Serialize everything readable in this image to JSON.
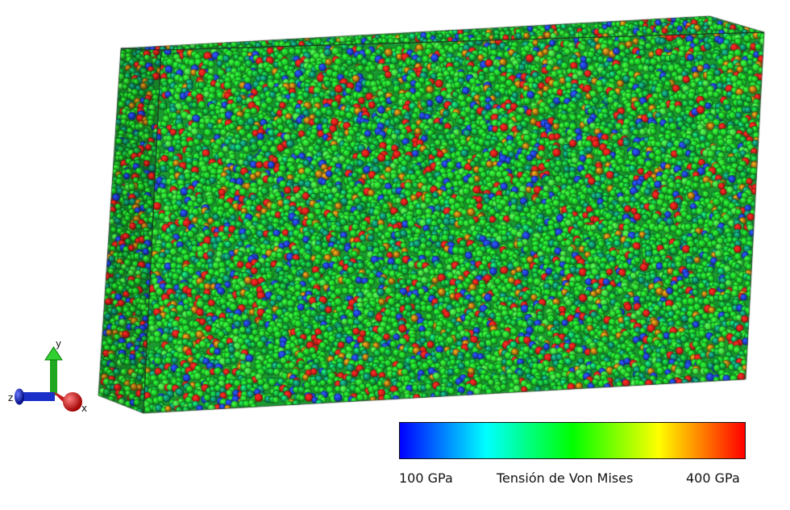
{
  "viewport": {
    "view": "atomistic stress render",
    "color_by": "von-mises-stress"
  },
  "triad": {
    "icon": "axis-triad-icon",
    "x_label": "x",
    "y_label": "y",
    "z_label": "z",
    "colors": {
      "x": "#dd1111",
      "y": "#22bb22",
      "z": "#1122cc"
    }
  },
  "colorbar": {
    "min_label": "100 GPa",
    "max_label": "400 GPa",
    "title": "Tensión de Von Mises",
    "stops": [
      "#0000ff",
      "#00ffff",
      "#00ff00",
      "#ffff00",
      "#ff0000"
    ]
  },
  "atom_palette": [
    "#1ecb2a",
    "#14a83a",
    "#2bd82f",
    "#0f8f6a",
    "#1e40d8",
    "#e0201a",
    "#b07a12",
    "#3fe040",
    "#10b060"
  ]
}
